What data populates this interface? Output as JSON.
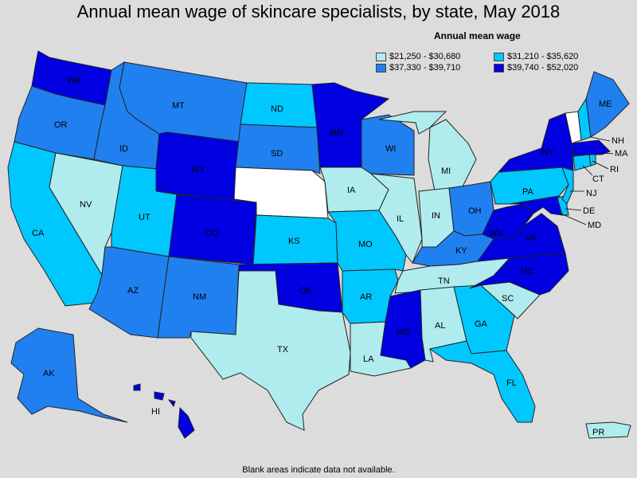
{
  "title": "Annual mean wage of skincare specialists, by state, May 2018",
  "legend": {
    "title": "Annual mean wage",
    "items": [
      {
        "label": "$21,250 - $30,680",
        "color": "#b0ecee"
      },
      {
        "label": "$31,210 - $35,620",
        "color": "#00c8ff"
      },
      {
        "label": "$37,330 - $39,710",
        "color": "#2080f0"
      },
      {
        "label": "$39,740 - $52,020",
        "color": "#0000e0"
      }
    ]
  },
  "footer": "Blank areas indicate data not available.",
  "colors": {
    "blank": "#ffffff"
  },
  "states": [
    {
      "id": "WA",
      "tier": 3
    },
    {
      "id": "OR",
      "tier": 2
    },
    {
      "id": "CA",
      "tier": 1
    },
    {
      "id": "ID",
      "tier": 2
    },
    {
      "id": "NV",
      "tier": 0
    },
    {
      "id": "MT",
      "tier": 2
    },
    {
      "id": "WY",
      "tier": 3
    },
    {
      "id": "UT",
      "tier": 1
    },
    {
      "id": "AZ",
      "tier": 2
    },
    {
      "id": "CO",
      "tier": 3
    },
    {
      "id": "NM",
      "tier": 2
    },
    {
      "id": "ND",
      "tier": 1
    },
    {
      "id": "SD",
      "tier": 2
    },
    {
      "id": "NE",
      "tier": -1
    },
    {
      "id": "KS",
      "tier": 1
    },
    {
      "id": "OK",
      "tier": 3
    },
    {
      "id": "TX",
      "tier": 0
    },
    {
      "id": "MN",
      "tier": 3
    },
    {
      "id": "IA",
      "tier": 0
    },
    {
      "id": "MO",
      "tier": 1
    },
    {
      "id": "AR",
      "tier": 1
    },
    {
      "id": "LA",
      "tier": 0
    },
    {
      "id": "WI",
      "tier": 2
    },
    {
      "id": "IL",
      "tier": 0
    },
    {
      "id": "MI",
      "tier": 0
    },
    {
      "id": "IN",
      "tier": 0
    },
    {
      "id": "OH",
      "tier": 2
    },
    {
      "id": "KY",
      "tier": 2
    },
    {
      "id": "TN",
      "tier": 0
    },
    {
      "id": "MS",
      "tier": 3
    },
    {
      "id": "AL",
      "tier": 0
    },
    {
      "id": "GA",
      "tier": 1
    },
    {
      "id": "FL",
      "tier": 1
    },
    {
      "id": "SC",
      "tier": 0
    },
    {
      "id": "NC",
      "tier": 3
    },
    {
      "id": "VA",
      "tier": 3
    },
    {
      "id": "WV",
      "tier": 3
    },
    {
      "id": "MD",
      "tier": 3
    },
    {
      "id": "DE",
      "tier": 1
    },
    {
      "id": "PA",
      "tier": 1
    },
    {
      "id": "NJ",
      "tier": 1
    },
    {
      "id": "NY",
      "tier": 3
    },
    {
      "id": "CT",
      "tier": 1
    },
    {
      "id": "RI",
      "tier": 1
    },
    {
      "id": "MA",
      "tier": 3
    },
    {
      "id": "VT",
      "tier": -1
    },
    {
      "id": "NH",
      "tier": 1
    },
    {
      "id": "ME",
      "tier": 2
    },
    {
      "id": "AK",
      "tier": 2
    },
    {
      "id": "HI",
      "tier": 3
    },
    {
      "id": "PR",
      "tier": 0
    }
  ]
}
